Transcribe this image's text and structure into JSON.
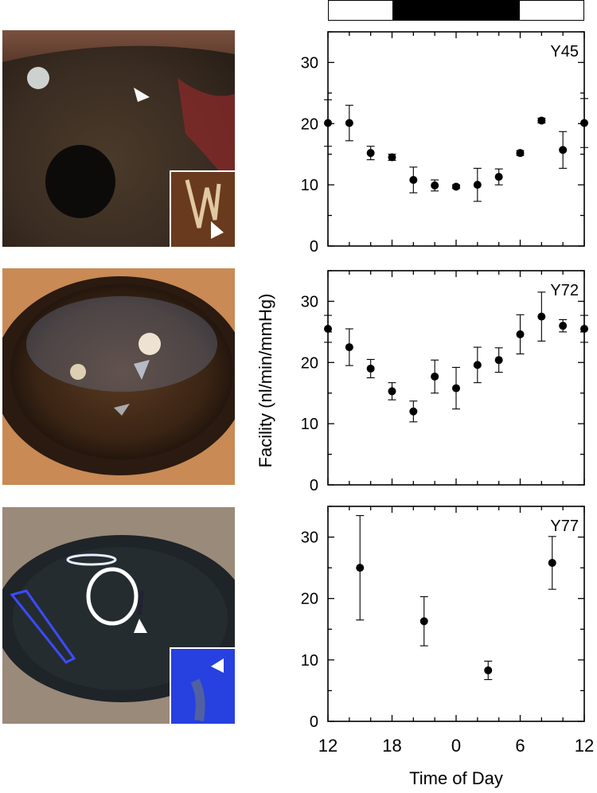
{
  "figure": {
    "ylabel": "Facility (nl/min/mmHg)",
    "xlabel": "Time of Day",
    "light_dark_bar": {
      "dark_start_hour": 18,
      "dark_end_hour": 6
    }
  },
  "chart_data": [
    {
      "type": "scatter",
      "title": "Y45",
      "xlim": [
        12,
        36
      ],
      "ylim": [
        0,
        35
      ],
      "xticks": [
        12,
        18,
        24,
        30,
        36
      ],
      "xtick_labels": [
        "12",
        "18",
        "0",
        "6",
        "12"
      ],
      "yticks": [
        0,
        10,
        20,
        30
      ],
      "points": [
        {
          "x": 12,
          "y": 20.1,
          "err": 3.8
        },
        {
          "x": 14,
          "y": 20.1,
          "err": 2.9
        },
        {
          "x": 16,
          "y": 15.2,
          "err": 1.1
        },
        {
          "x": 18,
          "y": 14.5,
          "err": 0.5
        },
        {
          "x": 20,
          "y": 10.8,
          "err": 2.1
        },
        {
          "x": 22,
          "y": 9.9,
          "err": 0.9
        },
        {
          "x": 24,
          "y": 9.7,
          "err": 0.3
        },
        {
          "x": 26,
          "y": 10.0,
          "err": 2.7
        },
        {
          "x": 28,
          "y": 11.3,
          "err": 1.3
        },
        {
          "x": 30,
          "y": 15.2,
          "err": 0.4
        },
        {
          "x": 32,
          "y": 20.5,
          "err": 0.4
        },
        {
          "x": 34,
          "y": 15.7,
          "err": 3.0
        },
        {
          "x": 36,
          "y": 20.1,
          "err": 4.0
        }
      ]
    },
    {
      "type": "scatter",
      "title": "Y72",
      "xlim": [
        12,
        36
      ],
      "ylim": [
        0,
        35
      ],
      "xticks": [
        12,
        18,
        24,
        30,
        36
      ],
      "xtick_labels": [
        "12",
        "18",
        "0",
        "6",
        "12"
      ],
      "yticks": [
        0,
        10,
        20,
        30
      ],
      "points": [
        {
          "x": 12,
          "y": 25.5,
          "err": 2.2
        },
        {
          "x": 14,
          "y": 22.5,
          "err": 3.0
        },
        {
          "x": 16,
          "y": 19.0,
          "err": 1.5
        },
        {
          "x": 18,
          "y": 15.3,
          "err": 1.4
        },
        {
          "x": 20,
          "y": 12.0,
          "err": 1.7
        },
        {
          "x": 22,
          "y": 17.7,
          "err": 2.7
        },
        {
          "x": 24,
          "y": 15.8,
          "err": 3.4
        },
        {
          "x": 26,
          "y": 19.6,
          "err": 2.9
        },
        {
          "x": 28,
          "y": 20.4,
          "err": 2.0
        },
        {
          "x": 30,
          "y": 24.6,
          "err": 3.2
        },
        {
          "x": 32,
          "y": 27.5,
          "err": 4.0
        },
        {
          "x": 34,
          "y": 26.0,
          "err": 1.0
        },
        {
          "x": 36,
          "y": 25.5,
          "err": 2.2
        }
      ]
    },
    {
      "type": "scatter",
      "title": "Y77",
      "xlim": [
        12,
        36
      ],
      "ylim": [
        0,
        35
      ],
      "xticks": [
        12,
        18,
        24,
        30,
        36
      ],
      "xtick_labels": [
        "12",
        "18",
        "0",
        "6",
        "12"
      ],
      "yticks": [
        0,
        10,
        20,
        30
      ],
      "points": [
        {
          "x": 15,
          "y": 25.0,
          "err": 8.5
        },
        {
          "x": 21,
          "y": 16.3,
          "err": 4.0
        },
        {
          "x": 27,
          "y": 8.3,
          "err": 1.5
        },
        {
          "x": 33,
          "y": 25.8,
          "err": 4.3
        }
      ]
    }
  ]
}
